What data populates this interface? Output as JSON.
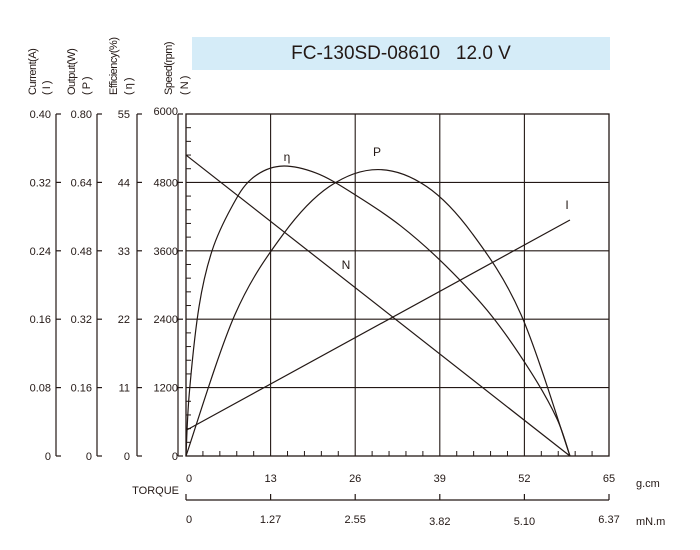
{
  "header": {
    "title": "FC-130SD-08610   12.0 V",
    "background_color": "#d5ecf8"
  },
  "axis_labels": {
    "current": "Current(A)",
    "current_sym": "( I )",
    "output": "Output(W)",
    "output_sym": "( P )",
    "efficiency": "Efficiency(%)",
    "efficiency_sym": "( η )",
    "speed": "Speed(rpm)",
    "speed_sym": "( N )",
    "torque": "TORQUE",
    "torque_unit_1": "g.cm",
    "torque_unit_2": "mN.m"
  },
  "curve_labels": {
    "efficiency": "η",
    "output": "P",
    "speed": "N",
    "current": "I"
  },
  "colors": {
    "line": "#231815",
    "background": "#ffffff"
  },
  "chart_data": {
    "type": "line",
    "title": "FC-130SD-08610 12.0 V",
    "xlabel": "TORQUE (g.cm / mN.m)",
    "x_ticks_gcm": [
      "0",
      "13",
      "26",
      "39",
      "52",
      "65"
    ],
    "x_ticks_mNm": [
      "0",
      "1.27",
      "2.55",
      "3.82",
      "5.10",
      "6.37"
    ],
    "xlim": [
      0,
      65
    ],
    "grid": true,
    "y_axes": [
      {
        "name": "Current(A)",
        "symbol": "I",
        "ticks": [
          "0",
          "0.08",
          "0.16",
          "0.24",
          "0.32",
          "0.40"
        ],
        "ylim": [
          0,
          0.4
        ]
      },
      {
        "name": "Output(W)",
        "symbol": "P",
        "ticks": [
          "0",
          "0.16",
          "0.32",
          "0.48",
          "0.64",
          "0.80"
        ],
        "ylim": [
          0,
          0.8
        ]
      },
      {
        "name": "Efficiency(%)",
        "symbol": "η",
        "ticks": [
          "0",
          "11",
          "22",
          "33",
          "44",
          "55"
        ],
        "ylim": [
          0,
          55
        ]
      },
      {
        "name": "Speed(rpm)",
        "symbol": "N",
        "ticks": [
          "0",
          "1200",
          "2400",
          "3600",
          "4800",
          "6000"
        ],
        "ylim": [
          0,
          6000
        ]
      }
    ],
    "series": [
      {
        "name": "Speed N (rpm)",
        "axis": 3,
        "x": [
          0,
          59
        ],
        "values": [
          5280,
          0
        ]
      },
      {
        "name": "Current I (A)",
        "axis": 0,
        "x": [
          0,
          59
        ],
        "values": [
          0.03,
          0.276
        ]
      },
      {
        "name": "Output P (W)",
        "axis": 1,
        "x": [
          0,
          7.5,
          15,
          22,
          29.5,
          37,
          44,
          51.5,
          59
        ],
        "values": [
          0,
          0.33,
          0.52,
          0.63,
          0.67,
          0.63,
          0.52,
          0.33,
          0
        ]
      },
      {
        "name": "Efficiency η (%)",
        "axis": 2,
        "x": [
          0,
          0.5,
          2,
          4,
          7,
          10,
          14.4,
          20,
          26,
          33,
          40,
          47,
          53,
          57,
          59
        ],
        "values": [
          0,
          10,
          24,
          33,
          40,
          44.5,
          46.6,
          45.5,
          42,
          37,
          30.5,
          22.5,
          13.5,
          6,
          0
        ]
      }
    ]
  }
}
